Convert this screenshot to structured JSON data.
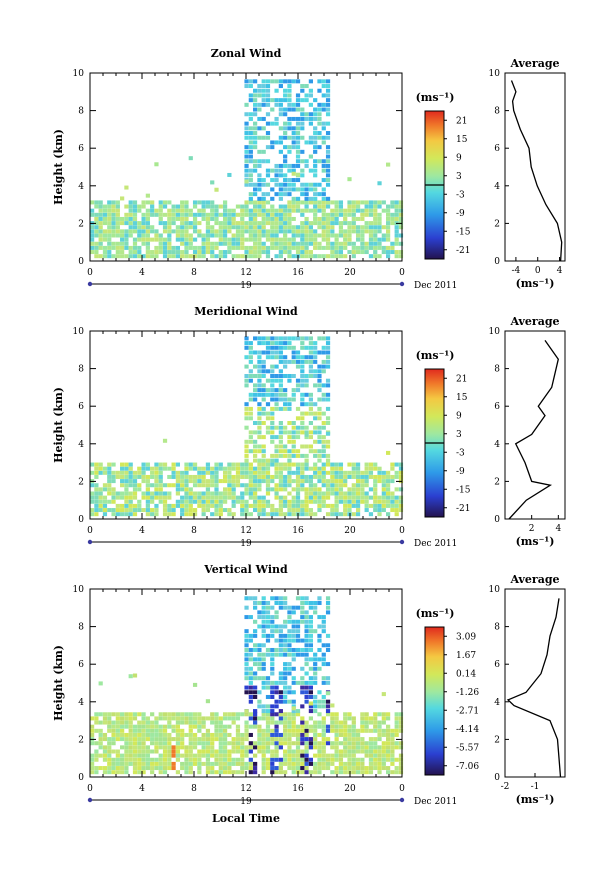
{
  "chart_data": [
    {
      "type": "heatmap",
      "title": "Zonal Wind",
      "ylabel": "Height (km)",
      "ylim": [
        0,
        10
      ],
      "xlim": [
        0,
        24
      ],
      "x_tick_labels": [
        "0",
        "4",
        "8",
        "12",
        "16",
        "20",
        "0"
      ],
      "y_tick_labels": [
        "0",
        "2",
        "4",
        "6",
        "8",
        "10"
      ],
      "date_marker": "19",
      "date_label": "Dec 2011",
      "colorbar": {
        "unit": "(ms⁻¹)",
        "range": [
          -24,
          24
        ],
        "ticks": [
          "21",
          "15",
          "9",
          "3",
          "-3",
          "-9",
          "-15",
          "-21"
        ],
        "zero_line_value": 0
      },
      "profile": {
        "title": "Average",
        "xlabel": "(ms⁻¹)",
        "xlim": [
          -6,
          5
        ],
        "x_tick_labels": [
          "-4",
          "0",
          "4"
        ],
        "y_tick_labels": [
          "0",
          "2",
          "4",
          "6",
          "8",
          "10"
        ],
        "points": [
          [
            4.2,
            0
          ],
          [
            4.4,
            1
          ],
          [
            3.6,
            2
          ],
          [
            1.5,
            3
          ],
          [
            -0.1,
            4
          ],
          [
            -1.2,
            5
          ],
          [
            -1.6,
            6
          ],
          [
            -3.2,
            7
          ],
          [
            -4.4,
            8
          ],
          [
            -4.6,
            8.5
          ],
          [
            -4.0,
            9
          ],
          [
            -4.8,
            9.6
          ]
        ]
      }
    },
    {
      "type": "heatmap",
      "title": "Meridional Wind",
      "ylabel": "Height (km)",
      "ylim": [
        0,
        10
      ],
      "xlim": [
        0,
        24
      ],
      "x_tick_labels": [
        "0",
        "4",
        "8",
        "12",
        "16",
        "20",
        "0"
      ],
      "y_tick_labels": [
        "0",
        "2",
        "4",
        "6",
        "8",
        "10"
      ],
      "date_marker": "19",
      "date_label": "Dec 2011",
      "colorbar": {
        "unit": "(ms⁻¹)",
        "range": [
          -24,
          24
        ],
        "ticks": [
          "21",
          "15",
          "9",
          "3",
          "-3",
          "-9",
          "-15",
          "-21"
        ],
        "zero_line_value": 0
      },
      "profile": {
        "title": "Average",
        "xlabel": "(ms⁻¹)",
        "xlim": [
          0,
          4.5
        ],
        "x_tick_labels": [
          "2",
          "4"
        ],
        "y_tick_labels": [
          "0",
          "2",
          "4",
          "6",
          "8",
          "10"
        ],
        "points": [
          [
            0.3,
            0
          ],
          [
            1.6,
            1
          ],
          [
            3.4,
            1.8
          ],
          [
            2.0,
            2
          ],
          [
            1.5,
            3
          ],
          [
            0.8,
            4
          ],
          [
            2.0,
            4.5
          ],
          [
            3.0,
            5.5
          ],
          [
            2.5,
            6
          ],
          [
            3.5,
            7
          ],
          [
            4.0,
            8.5
          ],
          [
            3.0,
            9.5
          ]
        ]
      }
    },
    {
      "type": "heatmap",
      "title": "Vertical Wind",
      "ylabel": "Height (km)",
      "xlabel": "Local Time",
      "ylim": [
        0,
        10
      ],
      "xlim": [
        0,
        24
      ],
      "x_tick_labels": [
        "0",
        "4",
        "8",
        "12",
        "16",
        "20",
        "0"
      ],
      "y_tick_labels": [
        "0",
        "2",
        "4",
        "6",
        "8",
        "10"
      ],
      "date_marker": "19",
      "date_label": "Dec 2011",
      "colorbar": {
        "unit": "(ms⁻¹)",
        "range": [
          -8,
          4
        ],
        "ticks": [
          "3.09",
          "1.67",
          "0.14",
          "-1.26",
          "-2.71",
          "-4.14",
          "-5.57",
          "-7.06"
        ]
      },
      "profile": {
        "title": "Average",
        "xlabel": "(ms⁻¹)",
        "xlim": [
          -2,
          0
        ],
        "x_tick_labels": [
          "-2",
          "-1"
        ],
        "y_tick_labels": [
          "0",
          "2",
          "4",
          "6",
          "8",
          "10"
        ],
        "points": [
          [
            -0.15,
            0
          ],
          [
            -0.2,
            1
          ],
          [
            -0.25,
            2
          ],
          [
            -0.5,
            3
          ],
          [
            -1.7,
            3.8
          ],
          [
            -1.9,
            4.1
          ],
          [
            -1.3,
            4.5
          ],
          [
            -0.8,
            5.5
          ],
          [
            -0.6,
            6.5
          ],
          [
            -0.5,
            7.5
          ],
          [
            -0.3,
            8.5
          ],
          [
            -0.2,
            9.5
          ]
        ]
      }
    }
  ]
}
